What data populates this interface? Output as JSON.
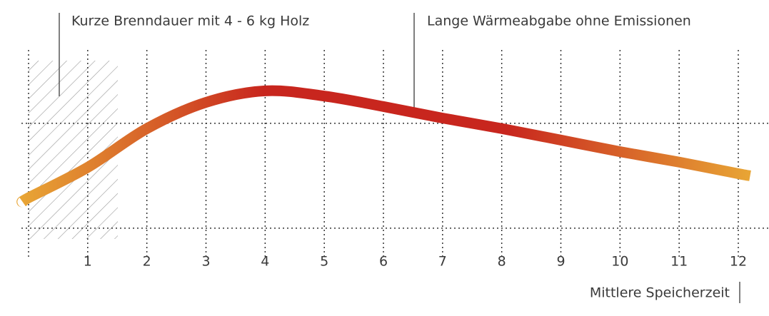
{
  "chart_data": {
    "type": "line",
    "annotations": [
      "Kurze Brenndauer mit 4 - 6 kg Holz",
      "Lange Wärmeabgabe ohne Emissionen"
    ],
    "x_label": "Mittlere Speicherzeit",
    "x": [
      -0.1,
      0,
      1,
      2,
      3,
      4,
      5,
      6,
      7,
      8,
      9,
      10,
      11,
      12,
      12.2
    ],
    "series": [
      {
        "gradient": [
          "#e8a535",
          "#c8261e",
          "#c8261e",
          "#e8a535"
        ],
        "values": [
          0.25,
          0.29,
          0.58,
          0.95,
          1.2,
          1.31,
          1.26,
          1.16,
          1.05,
          0.95,
          0.84,
          0.73,
          0.63,
          0.52,
          0.5
        ]
      }
    ],
    "xlim": [
      0,
      12
    ],
    "xticks": [
      1,
      2,
      3,
      4,
      5,
      6,
      7,
      8,
      9,
      10,
      11,
      12
    ],
    "ylim": [
      -0.3,
      1.7
    ],
    "reference_lines": [
      0,
      1
    ]
  }
}
